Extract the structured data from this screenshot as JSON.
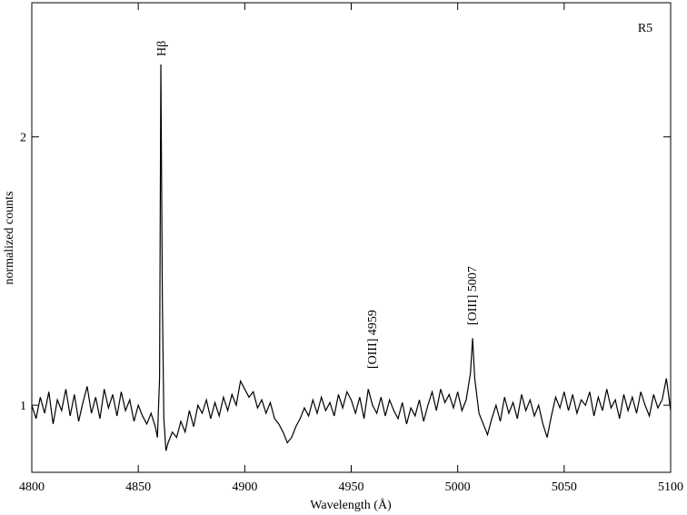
{
  "chart_data": {
    "type": "line",
    "x_label": "Wavelength  (Å)",
    "y_label": "normalized counts",
    "annotations": [
      "Hβ",
      "[OIII] 4959",
      "[OIII] 5007",
      "R5"
    ],
    "xlim": [
      4800,
      5100
    ],
    "xticks": [
      4800,
      4850,
      4900,
      4950,
      5000,
      5050,
      5100
    ],
    "ylim": [
      0.75,
      2.5
    ],
    "yticks": [
      1,
      2
    ],
    "series": [
      {
        "color": "#000000",
        "x": [
          4800,
          4802,
          4804,
          4806,
          4808,
          4810,
          4812,
          4814,
          4816,
          4818,
          4820,
          4822,
          4824,
          4826,
          4828,
          4830,
          4832,
          4834,
          4836,
          4838,
          4840,
          4842,
          4844,
          4846,
          4848,
          4850,
          4852,
          4854,
          4856,
          4858,
          4859,
          4860,
          4860.6,
          4861.3,
          4862,
          4863,
          4864,
          4866,
          4868,
          4870,
          4872,
          4874,
          4876,
          4878,
          4880,
          4882,
          4884,
          4886,
          4888,
          4890,
          4892,
          4894,
          4896,
          4898,
          4900,
          4902,
          4904,
          4906,
          4908,
          4910,
          4912,
          4914,
          4916,
          4918,
          4920,
          4922,
          4924,
          4926,
          4928,
          4930,
          4932,
          4934,
          4936,
          4938,
          4940,
          4942,
          4944,
          4946,
          4948,
          4950,
          4952,
          4954,
          4956,
          4958,
          4960,
          4962,
          4964,
          4966,
          4968,
          4970,
          4972,
          4974,
          4976,
          4978,
          4980,
          4982,
          4984,
          4986,
          4988,
          4990,
          4992,
          4994,
          4996,
          4998,
          5000,
          5002,
          5004,
          5006,
          5007,
          5008,
          5010,
          5012,
          5014,
          5016,
          5018,
          5020,
          5022,
          5024,
          5026,
          5028,
          5030,
          5032,
          5034,
          5036,
          5038,
          5040,
          5042,
          5044,
          5046,
          5048,
          5050,
          5052,
          5054,
          5056,
          5058,
          5060,
          5062,
          5064,
          5066,
          5068,
          5070,
          5072,
          5074,
          5076,
          5078,
          5080,
          5082,
          5084,
          5086,
          5088,
          5090,
          5092,
          5094,
          5096,
          5098,
          5100
        ],
        "values": [
          1.0,
          0.95,
          1.03,
          0.97,
          1.05,
          0.93,
          1.02,
          0.98,
          1.06,
          0.96,
          1.04,
          0.94,
          1.01,
          1.07,
          0.97,
          1.03,
          0.95,
          1.06,
          0.99,
          1.04,
          0.96,
          1.05,
          0.98,
          1.02,
          0.94,
          1.0,
          0.96,
          0.93,
          0.97,
          0.92,
          0.88,
          1.1,
          2.27,
          1.4,
          0.95,
          0.83,
          0.86,
          0.9,
          0.88,
          0.94,
          0.9,
          0.98,
          0.92,
          1.0,
          0.97,
          1.02,
          0.95,
          1.01,
          0.96,
          1.03,
          0.98,
          1.04,
          1.0,
          1.09,
          1.06,
          1.03,
          1.05,
          0.99,
          1.02,
          0.97,
          1.01,
          0.95,
          0.93,
          0.9,
          0.86,
          0.88,
          0.92,
          0.95,
          0.99,
          0.96,
          1.02,
          0.97,
          1.03,
          0.98,
          1.01,
          0.96,
          1.04,
          0.99,
          1.05,
          1.02,
          0.97,
          1.03,
          0.95,
          1.06,
          1.0,
          0.97,
          1.03,
          0.96,
          1.02,
          0.98,
          0.95,
          1.01,
          0.93,
          0.99,
          0.96,
          1.02,
          0.94,
          1.0,
          1.05,
          0.98,
          1.06,
          1.01,
          1.04,
          0.99,
          1.05,
          0.98,
          1.02,
          1.12,
          1.25,
          1.1,
          0.97,
          0.93,
          0.89,
          0.95,
          1.0,
          0.94,
          1.03,
          0.97,
          1.01,
          0.95,
          1.04,
          0.98,
          1.02,
          0.96,
          1.0,
          0.93,
          0.88,
          0.96,
          1.03,
          0.99,
          1.05,
          0.98,
          1.04,
          0.97,
          1.02,
          1.0,
          1.05,
          0.96,
          1.03,
          0.98,
          1.06,
          0.99,
          1.02,
          0.95,
          1.04,
          0.98,
          1.03,
          0.97,
          1.05,
          1.0,
          0.96,
          1.04,
          0.99,
          1.02,
          1.1,
          0.98
        ]
      }
    ]
  }
}
